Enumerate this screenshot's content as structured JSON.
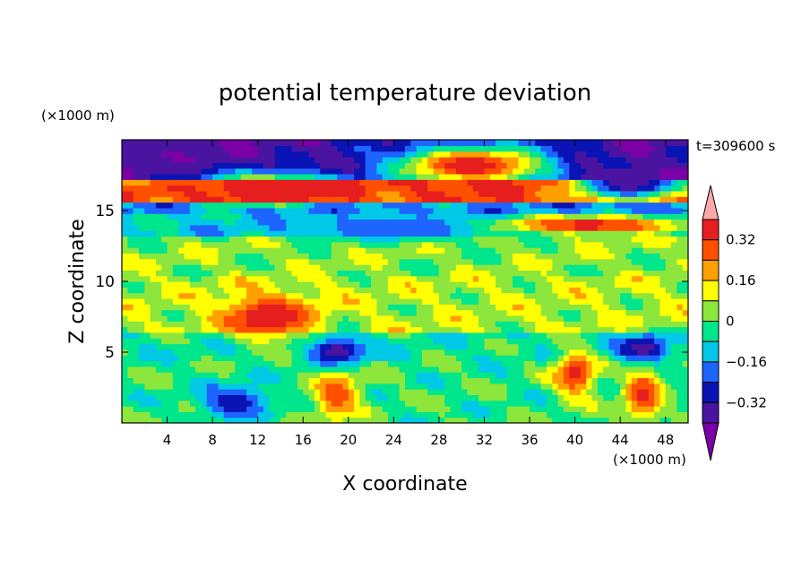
{
  "chart_data": {
    "type": "heatmap",
    "title": "potential temperature deviation",
    "xlabel": "X coordinate",
    "ylabel": "Z coordinate",
    "x_unit": "(×1000 m)",
    "y_unit": "(×1000 m)",
    "time_label": "t=309600 s",
    "xlim": [
      0,
      50
    ],
    "ylim": [
      0,
      20
    ],
    "x_ticks": [
      4,
      8,
      12,
      16,
      20,
      24,
      28,
      32,
      36,
      40,
      44,
      48
    ],
    "y_ticks": [
      5,
      10,
      15
    ],
    "colorbar": {
      "levels": [
        -0.4,
        -0.32,
        -0.24,
        -0.16,
        -0.08,
        0,
        0.08,
        0.16,
        0.24,
        0.32,
        0.4
      ],
      "labels": [
        "0.32",
        "0.16",
        "0",
        "−0.16",
        "−0.32"
      ],
      "label_values": [
        0.32,
        0.16,
        0,
        -0.16,
        -0.32
      ],
      "colors": [
        "#7b00a6",
        "#4a14a0",
        "#0a14b4",
        "#1e64ff",
        "#00c8e6",
        "#00e68c",
        "#8ce63c",
        "#ffff00",
        "#ffa000",
        "#ff5000",
        "#e61e1e",
        "#ffa8a8"
      ]
    },
    "field": {
      "background": -0.04,
      "bands": [
        {
          "z": [
            17.2,
            20.0
          ],
          "value": -0.36
        },
        {
          "z": [
            15.5,
            17.2
          ],
          "value": 0.3
        },
        {
          "z": [
            14.8,
            15.5
          ],
          "value": -0.18
        },
        {
          "z": [
            13.2,
            14.8
          ],
          "value": -0.1
        },
        {
          "z": [
            10.5,
            13.2
          ],
          "value": 0.04
        },
        {
          "z": [
            6.5,
            10.5
          ],
          "value": 0.07
        },
        {
          "z": [
            4.4,
            6.5
          ],
          "value": -0.05
        },
        {
          "z": [
            0,
            4.4
          ],
          "value": -0.02
        }
      ],
      "features": [
        {
          "x": 4,
          "z": 18.8,
          "rx": 5,
          "rz": 1.3,
          "value": -0.4
        },
        {
          "x": 13,
          "z": 16.6,
          "rx": 6,
          "rz": 1.0,
          "value": 0.4
        },
        {
          "x": 31,
          "z": 18.2,
          "rx": 7,
          "rz": 1.4,
          "value": 0.4
        },
        {
          "x": 41,
          "z": 14.0,
          "rx": 9,
          "rz": 0.6,
          "value": 0.4
        },
        {
          "x": 45,
          "z": 17.0,
          "rx": 5,
          "rz": 1.2,
          "value": -0.4
        },
        {
          "x": 24,
          "z": 13.8,
          "rx": 9,
          "rz": 0.9,
          "value": -0.2
        },
        {
          "x": 13,
          "z": 7.5,
          "rx": 4,
          "rz": 1.5,
          "value": 0.4
        },
        {
          "x": 19,
          "z": 5.0,
          "rx": 2.2,
          "rz": 1.2,
          "value": -0.4
        },
        {
          "x": 19,
          "z": 2.0,
          "rx": 2.0,
          "rz": 1.8,
          "value": 0.3
        },
        {
          "x": 40,
          "z": 3.5,
          "rx": 1.8,
          "rz": 1.6,
          "value": 0.35
        },
        {
          "x": 46,
          "z": 5.2,
          "rx": 2.2,
          "rz": 1.0,
          "value": -0.4
        },
        {
          "x": 46,
          "z": 2.0,
          "rx": 1.6,
          "rz": 1.8,
          "value": 0.35
        },
        {
          "x": 10,
          "z": 1.5,
          "rx": 3,
          "rz": 1.2,
          "value": -0.3
        }
      ]
    }
  }
}
